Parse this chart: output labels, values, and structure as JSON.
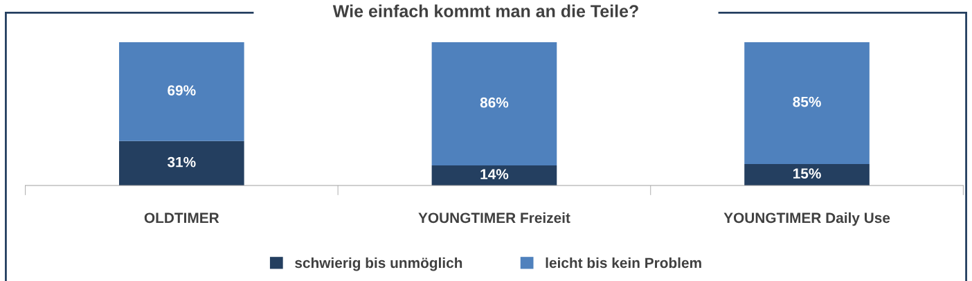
{
  "chart_data": {
    "type": "bar",
    "stacked": true,
    "title": "Wie einfach kommt man an die Teile?",
    "categories": [
      "OLDTIMER",
      "YOUNGTIMER Freizeit",
      "YOUNGTIMER Daily Use"
    ],
    "series": [
      {
        "name": "schwierig bis unmöglich",
        "color": "#243f60",
        "values": [
          31,
          14,
          15
        ],
        "value_labels": [
          "31%",
          "14%",
          "15%"
        ]
      },
      {
        "name": "leicht bis kein Problem",
        "color": "#4f81bd",
        "values": [
          69,
          86,
          85
        ],
        "value_labels": [
          "69%",
          "86%",
          "85%"
        ]
      }
    ],
    "legend": "bottom",
    "grid": false
  }
}
